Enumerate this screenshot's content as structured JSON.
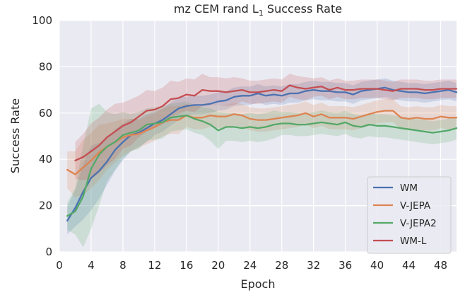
{
  "chart_data": {
    "type": "line",
    "title": "mz CEM rand L",
    "title_subscript": "1",
    "title_suffix": " Success Rate",
    "xlabel": "Epoch",
    "ylabel": "Success Rate",
    "xlim": [
      0,
      50
    ],
    "ylim": [
      0,
      100
    ],
    "xticks": [
      0,
      4,
      8,
      12,
      16,
      20,
      24,
      28,
      32,
      36,
      40,
      44,
      48
    ],
    "yticks": [
      0,
      20,
      40,
      60,
      80,
      100
    ],
    "grid": true,
    "legend_position": "lower-right",
    "x": [
      1,
      2,
      3,
      4,
      5,
      6,
      7,
      8,
      9,
      10,
      11,
      12,
      13,
      14,
      15,
      16,
      17,
      18,
      19,
      20,
      21,
      22,
      23,
      24,
      25,
      26,
      27,
      28,
      29,
      30,
      31,
      32,
      33,
      34,
      35,
      36,
      37,
      38,
      39,
      40,
      41,
      42,
      43,
      44,
      45,
      46,
      47,
      48,
      49,
      50
    ],
    "series": [
      {
        "name": "WM",
        "color": "#4c72b0",
        "values": [
          13.5,
          19,
          26,
          32,
          35,
          39,
          44,
          47.5,
          50.5,
          51.5,
          53.5,
          55.5,
          57,
          59.5,
          62,
          63,
          63.5,
          63.5,
          64,
          65,
          65.5,
          67,
          67.5,
          67.5,
          68.5,
          67.5,
          68,
          67.5,
          68.5,
          68.5,
          69.5,
          70,
          69.5,
          69.5,
          69,
          69,
          68,
          69.5,
          70,
          70.5,
          71,
          70,
          69.5,
          69,
          69,
          68.5,
          69,
          69.5,
          70,
          69
        ],
        "band": [
          6,
          8,
          12,
          14,
          12,
          10,
          9,
          8,
          7,
          6,
          6,
          5,
          5,
          5,
          5,
          4,
          4,
          4,
          4,
          4,
          4,
          4,
          4,
          4,
          4,
          4,
          4,
          4,
          4,
          4,
          4,
          4,
          4,
          4,
          4,
          4,
          4,
          4,
          4,
          4,
          4,
          4,
          4,
          4,
          4,
          4,
          4,
          4,
          4,
          4
        ]
      },
      {
        "name": "V-JEPA",
        "color": "#dd8452",
        "values": [
          35.5,
          33.5,
          36.5,
          39.5,
          43,
          45.5,
          47.5,
          49.5,
          50.5,
          51,
          52.5,
          54,
          56,
          57,
          57,
          59,
          58,
          58,
          59,
          58.5,
          58.5,
          59.5,
          59,
          57.5,
          57,
          57,
          57.5,
          58,
          58.5,
          59,
          60,
          58.5,
          59.5,
          58,
          58,
          58,
          57.5,
          58.5,
          59.5,
          60.5,
          61,
          61,
          58,
          57.5,
          58,
          57.5,
          57.5,
          58.5,
          58,
          58
        ],
        "band": [
          8,
          10,
          12,
          12,
          12,
          10,
          9,
          8,
          7,
          6,
          6,
          6,
          6,
          6,
          6,
          5,
          5,
          5,
          5,
          5,
          5,
          5,
          5,
          5,
          5,
          5,
          5,
          5,
          5,
          5,
          5,
          5,
          5,
          5,
          5,
          5,
          5,
          5,
          5,
          5,
          5,
          5,
          5,
          5,
          5,
          5,
          5,
          5,
          5,
          5
        ]
      },
      {
        "name": "V-JEPA2",
        "color": "#55a868",
        "values": [
          15.5,
          17.5,
          24,
          36,
          42,
          45.5,
          47.5,
          50.5,
          51.5,
          52.5,
          55,
          55.5,
          56,
          58,
          58.5,
          59,
          57.5,
          56.5,
          55,
          52.5,
          54,
          54,
          53.5,
          54,
          53.5,
          54,
          55,
          55.5,
          55.5,
          55,
          55,
          55.5,
          56,
          55.5,
          55,
          56,
          54.5,
          54,
          55,
          54.5,
          54.5,
          54,
          53.5,
          53,
          52.5,
          52,
          51.5,
          52,
          52.5,
          53.5
        ],
        "band": [
          6,
          10,
          22,
          26,
          22,
          15,
          12,
          10,
          8,
          8,
          7,
          7,
          7,
          6,
          6,
          6,
          6,
          6,
          7,
          8,
          6,
          6,
          6,
          6,
          6,
          6,
          6,
          5,
          5,
          5,
          5,
          5,
          5,
          5,
          5,
          5,
          5,
          5,
          5,
          5,
          5,
          5,
          5,
          5,
          5,
          5,
          5,
          5,
          5,
          5
        ]
      },
      {
        "name": "WM-L",
        "color": "#c44e52",
        "values": [
          null,
          39.5,
          41,
          43.5,
          46,
          49.5,
          52,
          54.5,
          56,
          58.5,
          61,
          61.5,
          63,
          66,
          66.5,
          68,
          67.5,
          70,
          69.5,
          69.5,
          69,
          69.5,
          70,
          69,
          69,
          69.5,
          70,
          69.5,
          72,
          71,
          70.5,
          71,
          71.5,
          70,
          71,
          70,
          70,
          70.5,
          70.5,
          70.5,
          70,
          69.5,
          70.5,
          70.5,
          70.5,
          70,
          70,
          70.5,
          70.5,
          70.5
        ],
        "band": [
          0,
          8,
          10,
          12,
          12,
          12,
          12,
          10,
          10,
          9,
          9,
          8,
          8,
          8,
          7,
          7,
          7,
          7,
          6,
          6,
          6,
          6,
          5,
          5,
          5,
          5,
          5,
          5,
          5,
          5,
          5,
          4,
          4,
          4,
          4,
          4,
          4,
          4,
          4,
          4,
          4,
          4,
          4,
          4,
          4,
          4,
          4,
          4,
          4,
          4
        ]
      }
    ]
  }
}
